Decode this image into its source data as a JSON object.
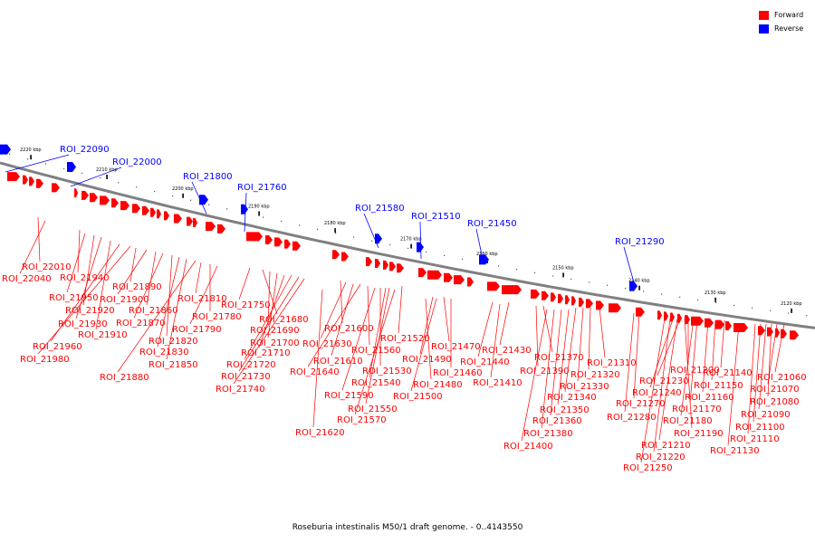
{
  "legend": {
    "items": [
      {
        "label": "Forward",
        "color": "#ff0000"
      },
      {
        "label": "Reverse",
        "color": "#0000ff"
      }
    ]
  },
  "caption": "Roseburia intestinalis M50/1 draft genome. - 0..4143550",
  "colors": {
    "forward": "#ff0000",
    "reverse": "#0000ff",
    "backbone": "#808080"
  },
  "scale_ticks": [
    "2220 kbp",
    "2210 kbp",
    "2200 kbp",
    "2190 kbp",
    "2180 kbp",
    "2170 kbp",
    "2160 kbp",
    "2150 kbp",
    "2140 kbp",
    "2130 kbp",
    "2120 kbp"
  ],
  "reverse_labels": [
    "ROI_22090",
    "ROI_22000",
    "ROI_21800",
    "ROI_21760",
    "ROI_21580",
    "ROI_21510",
    "ROI_21450",
    "ROI_21290"
  ],
  "forward_labels": [
    "ROI_22010",
    "ROI_22040",
    "ROI_21940",
    "ROI_21950",
    "ROI_21920",
    "ROI_21930",
    "ROI_21910",
    "ROI_21960",
    "ROI_21980",
    "ROI_21890",
    "ROI_21900",
    "ROI_21860",
    "ROI_21870",
    "ROI_21820",
    "ROI_21830",
    "ROI_21850",
    "ROI_21880",
    "ROI_21810",
    "ROI_21780",
    "ROI_21790",
    "ROI_21750",
    "ROI_21680",
    "ROI_21690",
    "ROI_21700",
    "ROI_21710",
    "ROI_21720",
    "ROI_21730",
    "ROI_21740",
    "ROI_21600",
    "ROI_21630",
    "ROI_21610",
    "ROI_21640",
    "ROI_21560",
    "ROI_21520",
    "ROI_21530",
    "ROI_21540",
    "ROI_21590",
    "ROI_21550",
    "ROI_21570",
    "ROI_21620",
    "ROI_21470",
    "ROI_21490",
    "ROI_21460",
    "ROI_21480",
    "ROI_21500",
    "ROI_21430",
    "ROI_21440",
    "ROI_21410",
    "ROI_21370",
    "ROI_21390",
    "ROI_21310",
    "ROI_21320",
    "ROI_21330",
    "ROI_21340",
    "ROI_21350",
    "ROI_21360",
    "ROI_21380",
    "ROI_21400",
    "ROI_21270",
    "ROI_21280",
    "ROI_21200",
    "ROI_21230",
    "ROI_21240",
    "ROI_21170",
    "ROI_21180",
    "ROI_21190",
    "ROI_21210",
    "ROI_21220",
    "ROI_21250",
    "ROI_21140",
    "ROI_21150",
    "ROI_21160",
    "ROI_21060",
    "ROI_21070",
    "ROI_21080",
    "ROI_21090",
    "ROI_21100",
    "ROI_21110",
    "ROI_21130"
  ]
}
